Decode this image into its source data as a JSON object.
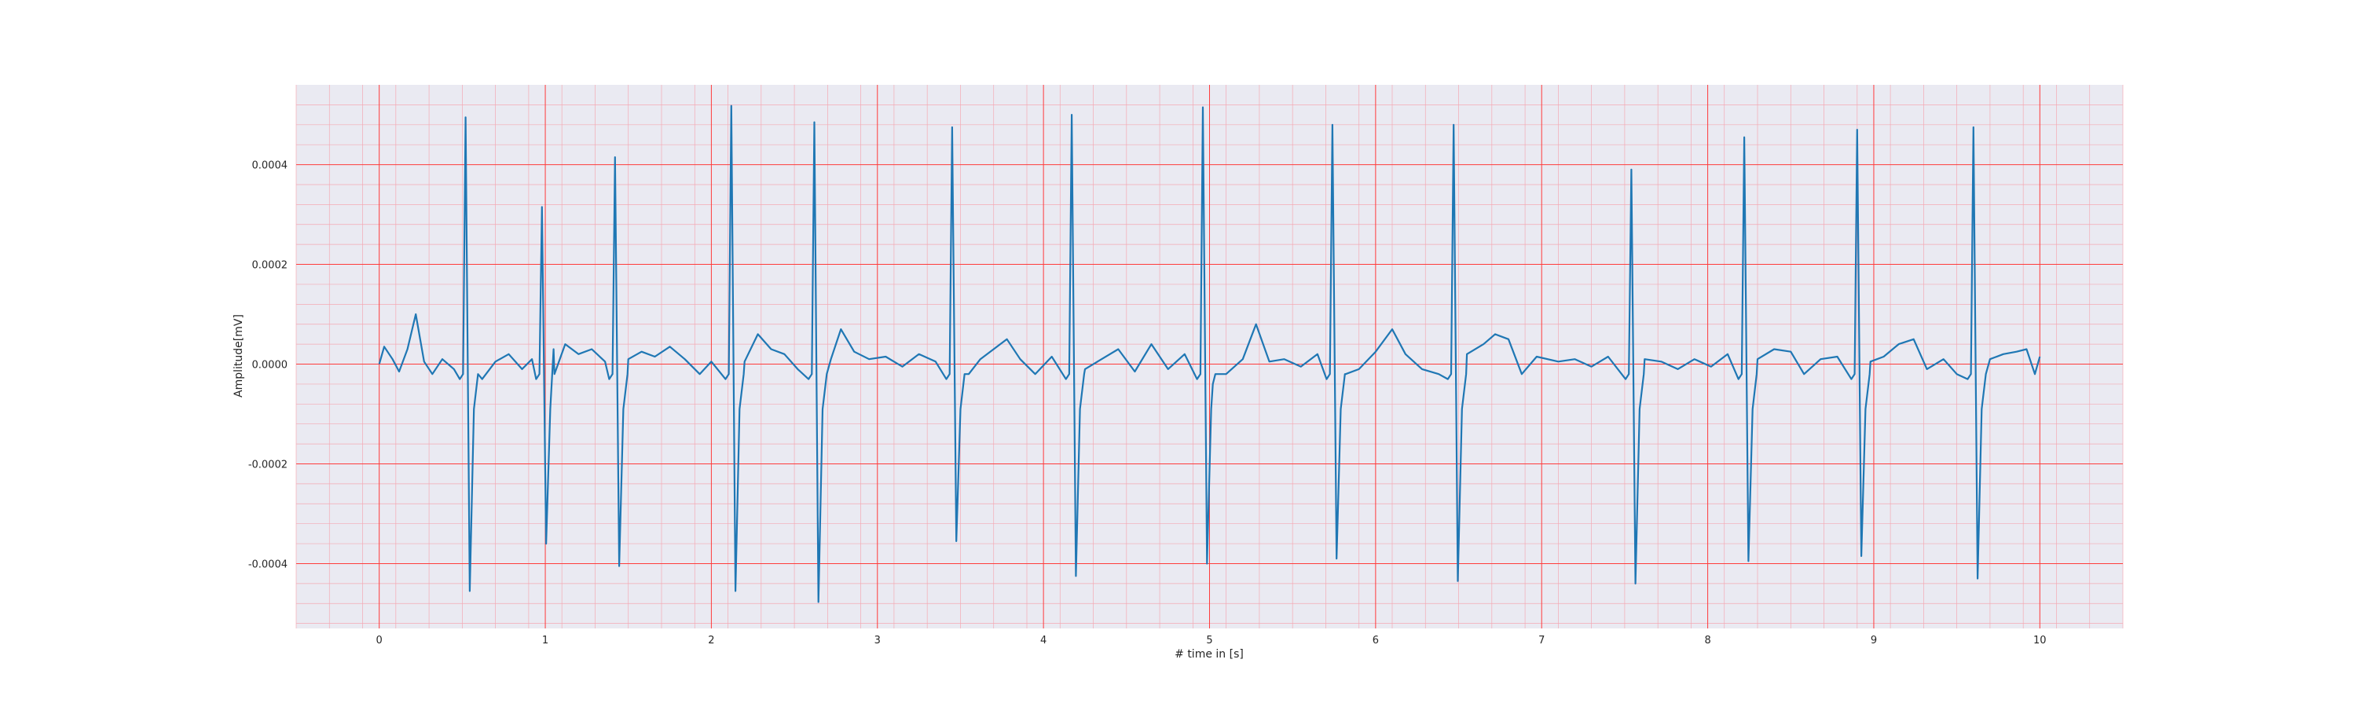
{
  "chart_data": {
    "type": "line",
    "title": "",
    "xlabel": "# time in [s]",
    "ylabel": "Amplitude[mV]",
    "xlim": [
      -0.5,
      10.5
    ],
    "ylim": [
      -0.00053,
      0.00056
    ],
    "xticks": [
      0,
      1,
      2,
      3,
      4,
      5,
      6,
      7,
      8,
      9,
      10
    ],
    "xtick_labels": [
      "0",
      "1",
      "2",
      "3",
      "4",
      "5",
      "6",
      "7",
      "8",
      "9",
      "10"
    ],
    "yticks": [
      -0.0004,
      -0.0002,
      0.0,
      0.0002,
      0.0004
    ],
    "ytick_labels": [
      "-0.0004",
      "-0.0002",
      "0.0000",
      "0.0002",
      "0.0004"
    ],
    "grid": {
      "major": true,
      "minor": true,
      "major_color": "#ff3b3b",
      "minor_color": "#f4a9b4"
    },
    "background_color": "#eaeaf2",
    "line_color": "#1f77b4",
    "series": [
      {
        "beats": [
          {
            "t": 0.52,
            "peak": 0.000495,
            "trough": -0.000455
          },
          {
            "t": 0.98,
            "peak": 0.000315,
            "trough": -0.00036
          },
          {
            "t": 1.42,
            "peak": 0.000415,
            "trough": -0.000405
          },
          {
            "t": 2.12,
            "peak": 0.000518,
            "trough": -0.000455
          },
          {
            "t": 2.62,
            "peak": 0.000485,
            "trough": -0.000477
          },
          {
            "t": 3.45,
            "peak": 0.000475,
            "trough": -0.000355
          },
          {
            "t": 4.17,
            "peak": 0.0005,
            "trough": -0.000425
          },
          {
            "t": 4.96,
            "peak": 0.000515,
            "trough": -0.0004
          },
          {
            "t": 5.74,
            "peak": 0.00048,
            "trough": -0.00039
          },
          {
            "t": 6.47,
            "peak": 0.00048,
            "trough": -0.000435
          },
          {
            "t": 7.54,
            "peak": 0.00039,
            "trough": -0.00044
          },
          {
            "t": 8.22,
            "peak": 0.000455,
            "trough": -0.000395
          },
          {
            "t": 8.9,
            "peak": 0.00047,
            "trough": -0.000385
          },
          {
            "t": 9.6,
            "peak": 0.000475,
            "trough": -0.00043
          }
        ],
        "baseline_points": [
          [
            0.0,
            0.0
          ],
          [
            0.03,
            3.5e-05
          ],
          [
            0.08,
            1e-05
          ],
          [
            0.12,
            -1.5e-05
          ],
          [
            0.17,
            3e-05
          ],
          [
            0.22,
            0.0001
          ],
          [
            0.27,
            5e-06
          ],
          [
            0.32,
            -2e-05
          ],
          [
            0.38,
            1e-05
          ],
          [
            0.45,
            -1e-05
          ],
          [
            0.62,
            -3e-05
          ],
          [
            0.7,
            5e-06
          ],
          [
            0.78,
            2e-05
          ],
          [
            0.86,
            -1e-05
          ],
          [
            0.92,
            1e-05
          ],
          [
            1.05,
            3e-05
          ],
          [
            1.12,
            4e-05
          ],
          [
            1.2,
            2e-05
          ],
          [
            1.28,
            3e-05
          ],
          [
            1.36,
            5e-06
          ],
          [
            1.5,
            1e-05
          ],
          [
            1.58,
            2.5e-05
          ],
          [
            1.66,
            1.5e-05
          ],
          [
            1.75,
            3.5e-05
          ],
          [
            1.84,
            1e-05
          ],
          [
            1.93,
            -2e-05
          ],
          [
            2.0,
            5e-06
          ],
          [
            2.2,
            5e-06
          ],
          [
            2.28,
            6e-05
          ],
          [
            2.36,
            3e-05
          ],
          [
            2.44,
            2e-05
          ],
          [
            2.52,
            -1e-05
          ],
          [
            2.72,
            1e-05
          ],
          [
            2.78,
            7e-05
          ],
          [
            2.86,
            2.5e-05
          ],
          [
            2.95,
            1e-05
          ],
          [
            3.05,
            1.5e-05
          ],
          [
            3.15,
            -5e-06
          ],
          [
            3.25,
            2e-05
          ],
          [
            3.35,
            5e-06
          ],
          [
            3.55,
            -2e-05
          ],
          [
            3.62,
            1e-05
          ],
          [
            3.7,
            3e-05
          ],
          [
            3.78,
            5e-05
          ],
          [
            3.86,
            1e-05
          ],
          [
            3.95,
            -2e-05
          ],
          [
            4.05,
            1.5e-05
          ],
          [
            4.25,
            -1e-05
          ],
          [
            4.35,
            1e-05
          ],
          [
            4.45,
            3e-05
          ],
          [
            4.55,
            -1.5e-05
          ],
          [
            4.65,
            4e-05
          ],
          [
            4.75,
            -1e-05
          ],
          [
            4.85,
            2e-05
          ],
          [
            5.02,
            -4e-05
          ],
          [
            5.1,
            -2e-05
          ],
          [
            5.2,
            1e-05
          ],
          [
            5.28,
            8e-05
          ],
          [
            5.36,
            5e-06
          ],
          [
            5.45,
            1e-05
          ],
          [
            5.55,
            -5e-06
          ],
          [
            5.65,
            2e-05
          ],
          [
            5.82,
            -2e-05
          ],
          [
            5.9,
            -1e-05
          ],
          [
            6.0,
            2.5e-05
          ],
          [
            6.1,
            7e-05
          ],
          [
            6.18,
            2e-05
          ],
          [
            6.28,
            -1e-05
          ],
          [
            6.38,
            -2e-05
          ],
          [
            6.55,
            2e-05
          ],
          [
            6.65,
            4e-05
          ],
          [
            6.72,
            6e-05
          ],
          [
            6.8,
            5e-05
          ],
          [
            6.88,
            -2e-05
          ],
          [
            6.97,
            1.5e-05
          ],
          [
            7.1,
            5e-06
          ],
          [
            7.2,
            1e-05
          ],
          [
            7.3,
            -5e-06
          ],
          [
            7.4,
            1.5e-05
          ],
          [
            7.62,
            1e-05
          ],
          [
            7.72,
            5e-06
          ],
          [
            7.82,
            -1e-05
          ],
          [
            7.92,
            1e-05
          ],
          [
            8.02,
            -5e-06
          ],
          [
            8.12,
            2e-05
          ],
          [
            8.3,
            1e-05
          ],
          [
            8.4,
            3e-05
          ],
          [
            8.5,
            2.5e-05
          ],
          [
            8.58,
            -2e-05
          ],
          [
            8.68,
            1e-05
          ],
          [
            8.78,
            1.5e-05
          ],
          [
            8.98,
            5e-06
          ],
          [
            9.06,
            1.5e-05
          ],
          [
            9.15,
            4e-05
          ],
          [
            9.24,
            5e-05
          ],
          [
            9.32,
            -1e-05
          ],
          [
            9.42,
            1e-05
          ],
          [
            9.5,
            -2e-05
          ],
          [
            9.7,
            1e-05
          ],
          [
            9.78,
            2e-05
          ],
          [
            9.86,
            2.5e-05
          ],
          [
            9.92,
            3e-05
          ],
          [
            9.97,
            -2e-05
          ],
          [
            10.0,
            1.5e-05
          ]
        ]
      }
    ]
  }
}
